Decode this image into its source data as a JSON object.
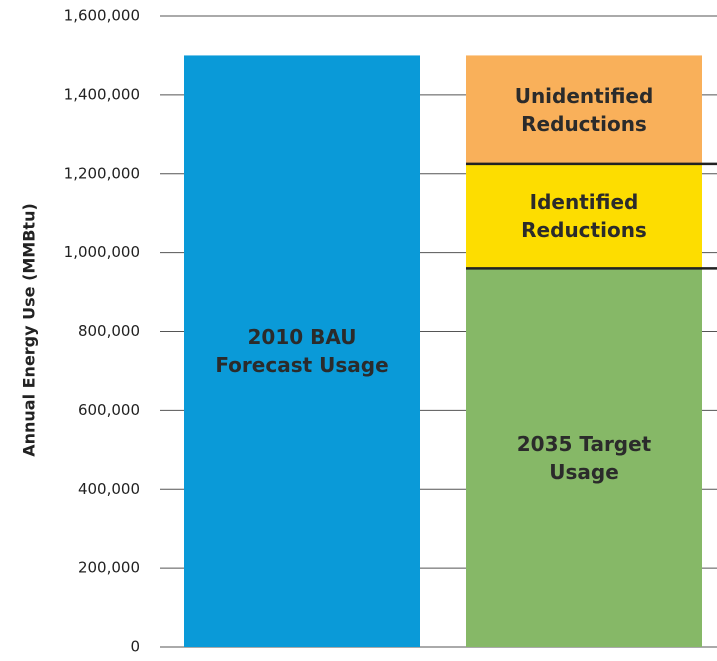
{
  "chart_data": {
    "type": "stacked_bar",
    "y_label": "Annual Energy Use (MMBtu)",
    "categories": [
      null,
      null
    ],
    "series": [
      {
        "name": "2010 BAU Forecast Usage",
        "color": "#0a9ad8",
        "values": [
          1500000,
          null
        ]
      },
      {
        "name": "2035 Target Usage",
        "color": "#86b867",
        "values": [
          null,
          960000
        ]
      },
      {
        "name": "Identified Reductions",
        "color": "#fddd00",
        "values": [
          null,
          265000
        ]
      },
      {
        "name": "Unidentified Reductions",
        "color": "#f9b05a",
        "values": [
          null,
          275000
        ]
      }
    ],
    "ylim": [
      0,
      1600000
    ],
    "yticks": [
      0,
      {
        "value": 200000,
        "label": "200,000"
      },
      {
        "value": 400000,
        "label": "400,000"
      },
      {
        "value": 600000,
        "label": "600,000"
      },
      {
        "value": 800000,
        "label": "800,000"
      },
      {
        "value": 1000000,
        "label": "1,000,000"
      },
      {
        "value": 1200000,
        "label": "1,200,000"
      },
      {
        "value": 1400000,
        "label": "1,400,000"
      },
      {
        "value": 1600000,
        "label": "1,600,000"
      }
    ],
    "grid": true
  }
}
